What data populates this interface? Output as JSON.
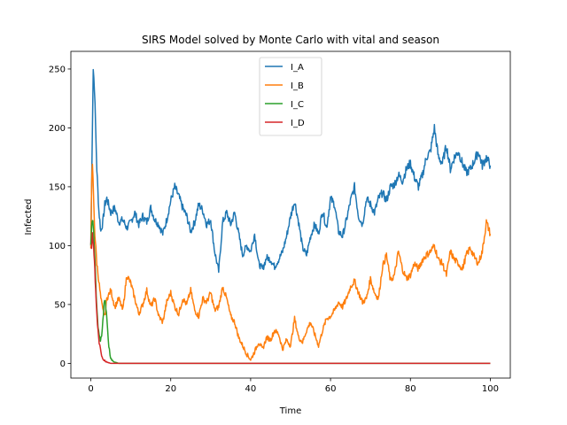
{
  "chart_data": {
    "type": "line",
    "title": "SIRS Model solved by Monte Carlo with vital and season",
    "xlabel": "Time",
    "ylabel": "Infected",
    "xlim": [
      -5,
      105
    ],
    "ylim": [
      -12.5,
      265
    ],
    "xticks": [
      0,
      20,
      40,
      60,
      80,
      100
    ],
    "yticks": [
      0,
      50,
      100,
      150,
      200,
      250
    ],
    "grid": false,
    "legend_position": "top-center",
    "series": [
      {
        "name": "I_A",
        "color": "#1f77b4",
        "x": [
          0,
          0.3,
          0.6,
          0.9,
          1.2,
          1.5,
          2,
          2.5,
          3,
          3.5,
          4,
          5,
          6,
          7,
          8,
          9,
          10,
          11,
          12,
          13,
          14,
          15,
          16,
          17,
          18,
          19,
          20,
          21,
          22,
          23,
          24,
          25,
          26,
          27,
          28,
          29,
          30,
          31,
          32,
          33,
          34,
          35,
          36,
          37,
          38,
          39,
          40,
          41,
          42,
          43,
          44,
          45,
          46,
          47,
          48,
          49,
          50,
          51,
          52,
          53,
          54,
          55,
          56,
          57,
          58,
          59,
          60,
          61,
          62,
          63,
          64,
          65,
          66,
          67,
          68,
          69,
          70,
          71,
          72,
          73,
          74,
          75,
          76,
          77,
          78,
          79,
          80,
          81,
          82,
          83,
          84,
          85,
          86,
          87,
          88,
          89,
          90,
          91,
          92,
          93,
          94,
          95,
          96,
          97,
          98,
          99,
          100
        ],
        "y": [
          100,
          180,
          250,
          235,
          200,
          165,
          130,
          112,
          120,
          135,
          140,
          128,
          132,
          120,
          122,
          115,
          120,
          128,
          118,
          125,
          120,
          132,
          122,
          118,
          110,
          122,
          138,
          150,
          142,
          132,
          125,
          112,
          120,
          135,
          130,
          118,
          122,
          95,
          78,
          120,
          128,
          118,
          128,
          110,
          92,
          100,
          95,
          110,
          85,
          80,
          90,
          88,
          82,
          88,
          95,
          108,
          125,
          138,
          120,
          98,
          92,
          108,
          118,
          110,
          130,
          115,
          140,
          135,
          112,
          108,
          122,
          138,
          150,
          125,
          118,
          140,
          135,
          128,
          140,
          145,
          138,
          150,
          152,
          160,
          155,
          165,
          170,
          158,
          150,
          160,
          175,
          180,
          200,
          175,
          170,
          185,
          165,
          175,
          180,
          170,
          162,
          165,
          172,
          180,
          168,
          175,
          168
        ]
      },
      {
        "name": "I_B",
        "color": "#ff7f0e",
        "x": [
          0,
          0.2,
          0.4,
          0.7,
          1,
          1.5,
          2,
          2.5,
          3,
          3.5,
          4,
          5,
          6,
          7,
          8,
          9,
          10,
          11,
          12,
          13,
          14,
          15,
          16,
          17,
          18,
          19,
          20,
          21,
          22,
          23,
          24,
          25,
          26,
          27,
          28,
          29,
          30,
          31,
          32,
          33,
          34,
          35,
          36,
          37,
          38,
          39,
          40,
          41,
          42,
          43,
          44,
          45,
          46,
          47,
          48,
          49,
          50,
          51,
          52,
          53,
          54,
          55,
          56,
          57,
          58,
          59,
          60,
          61,
          62,
          63,
          64,
          65,
          66,
          67,
          68,
          69,
          70,
          71,
          72,
          73,
          74,
          75,
          76,
          77,
          78,
          79,
          80,
          81,
          82,
          83,
          84,
          85,
          86,
          87,
          88,
          89,
          90,
          91,
          92,
          93,
          94,
          95,
          96,
          97,
          98,
          99,
          100
        ],
        "y": [
          100,
          150,
          170,
          140,
          110,
          85,
          70,
          55,
          45,
          40,
          55,
          62,
          48,
          55,
          45,
          75,
          68,
          55,
          42,
          50,
          62,
          48,
          55,
          40,
          35,
          52,
          60,
          48,
          42,
          55,
          50,
          62,
          45,
          40,
          55,
          52,
          60,
          45,
          48,
          65,
          55,
          40,
          35,
          22,
          15,
          8,
          3,
          10,
          18,
          12,
          22,
          20,
          28,
          25,
          12,
          20,
          15,
          38,
          22,
          18,
          28,
          35,
          25,
          15,
          28,
          38,
          40,
          45,
          52,
          48,
          55,
          65,
          70,
          60,
          52,
          55,
          72,
          60,
          55,
          82,
          92,
          70,
          75,
          95,
          80,
          72,
          75,
          85,
          80,
          88,
          92,
          95,
          100,
          88,
          85,
          75,
          95,
          88,
          85,
          80,
          92,
          98,
          90,
          85,
          95,
          120,
          110
        ]
      },
      {
        "name": "I_C",
        "color": "#2ca02c",
        "x": [
          0,
          0.2,
          0.4,
          0.6,
          0.8,
          1,
          1.2,
          1.5,
          1.8,
          2.1,
          2.4,
          2.7,
          3,
          3.3,
          3.6,
          3.9,
          4.2,
          4.5,
          4.8,
          5.1,
          5.5,
          6,
          7,
          8,
          10,
          20,
          40,
          60,
          80,
          100
        ],
        "y": [
          100,
          115,
          122,
          118,
          105,
          90,
          70,
          45,
          30,
          22,
          20,
          25,
          35,
          52,
          55,
          42,
          28,
          15,
          8,
          4,
          2,
          1,
          0,
          0,
          0,
          0,
          0,
          0,
          0,
          0
        ]
      },
      {
        "name": "I_D",
        "color": "#d62728",
        "x": [
          0,
          0.2,
          0.4,
          0.6,
          0.8,
          1,
          1.2,
          1.5,
          1.8,
          2.1,
          2.4,
          2.7,
          3,
          3.3,
          3.6,
          4,
          5,
          6,
          8,
          10,
          20,
          40,
          60,
          80,
          100
        ],
        "y": [
          100,
          95,
          110,
          102,
          92,
          80,
          62,
          42,
          28,
          18,
          12,
          8,
          5,
          3,
          2,
          1,
          0,
          0,
          0,
          0,
          0,
          0,
          0,
          0,
          0
        ]
      }
    ]
  }
}
